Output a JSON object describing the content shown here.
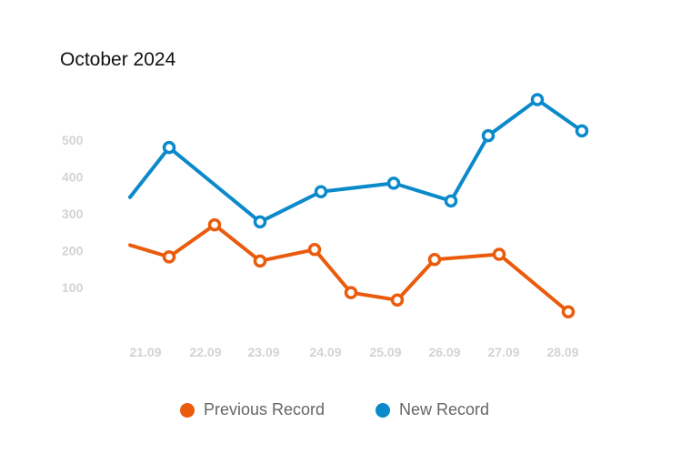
{
  "chart_data": {
    "type": "line",
    "title": "October 2024",
    "xlabel": "",
    "ylabel": "",
    "y_ticks": [
      "100",
      "200",
      "300",
      "400",
      "500"
    ],
    "x_tick_labels": [
      "21.09",
      "22.09",
      "23.09",
      "24.09",
      "25.09",
      "26.09",
      "27.09",
      "28.09"
    ],
    "grid": false,
    "legend_position": "bottom",
    "series": [
      {
        "name": "Previous Record",
        "color": "#ea5b0c",
        "points": [
          {
            "x": "20.09",
            "y": 215,
            "marker": false
          },
          {
            "x": "21.09",
            "y": 183,
            "marker": true
          },
          {
            "x": "22.09",
            "y": 270,
            "marker": true
          },
          {
            "x": "22.09",
            "y": 172,
            "marker": true
          },
          {
            "x": "23.09",
            "y": 203,
            "marker": true
          },
          {
            "x": "24.09",
            "y": 86,
            "marker": true
          },
          {
            "x": "25.09",
            "y": 66,
            "marker": true
          },
          {
            "x": "25.09",
            "y": 176,
            "marker": true
          },
          {
            "x": "26.09",
            "y": 190,
            "marker": true
          },
          {
            "x": "27.09",
            "y": 34,
            "marker": true
          }
        ]
      },
      {
        "name": "New Record",
        "color": "#0a8acb",
        "points": [
          {
            "x": "20.09",
            "y": 345,
            "marker": false
          },
          {
            "x": "21.09",
            "y": 480,
            "marker": true
          },
          {
            "x": "22.09",
            "y": 278,
            "marker": true
          },
          {
            "x": "23.09",
            "y": 360,
            "marker": true
          },
          {
            "x": "24.09",
            "y": 383,
            "marker": true
          },
          {
            "x": "25.09",
            "y": 335,
            "marker": true
          },
          {
            "x": "26.09",
            "y": 512,
            "marker": true
          },
          {
            "x": "27.09",
            "y": 610,
            "marker": true
          },
          {
            "x": "28.09",
            "y": 525,
            "marker": true
          }
        ]
      }
    ]
  }
}
